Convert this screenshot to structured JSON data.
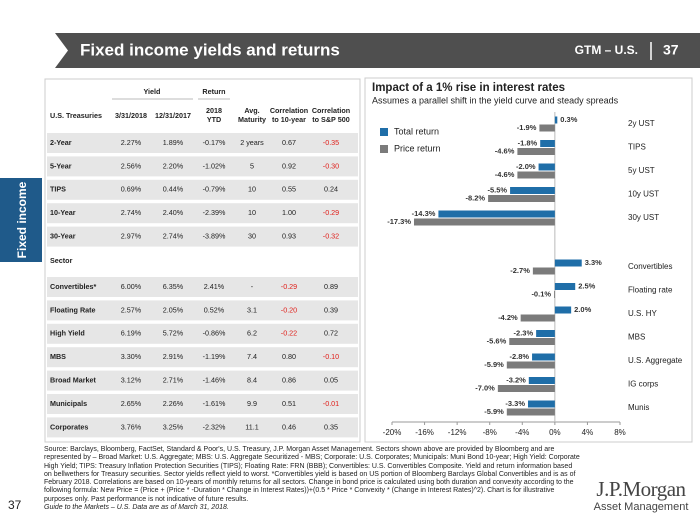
{
  "header": {
    "title": "Fixed income yields and returns",
    "series_label": "GTM – U.S.",
    "page": "37"
  },
  "side_label": "Fixed income",
  "table": {
    "group_headers": [
      "Yield",
      "Return"
    ],
    "columns": [
      [
        "U.S. Treasuries"
      ],
      [
        "3/31/2018"
      ],
      [
        "12/31/2017"
      ],
      [
        "2018",
        "YTD"
      ],
      [
        "Avg.",
        "Maturity"
      ],
      [
        "Correlation",
        "to 10-year"
      ],
      [
        "Correlation",
        "to S&P 500"
      ]
    ],
    "treasury_rows": [
      [
        "2-Year",
        "2.27%",
        "1.89%",
        "-0.17%",
        "2 years",
        "0.67",
        "-0.35"
      ],
      [
        "5-Year",
        "2.56%",
        "2.20%",
        "-1.02%",
        "5",
        "0.92",
        "-0.30"
      ],
      [
        "TIPS",
        "0.69%",
        "0.44%",
        "-0.79%",
        "10",
        "0.55",
        "0.24"
      ],
      [
        "10-Year",
        "2.74%",
        "2.40%",
        "-2.39%",
        "10",
        "1.00",
        "-0.29"
      ],
      [
        "30-Year",
        "2.97%",
        "2.74%",
        "-3.89%",
        "30",
        "0.93",
        "-0.32"
      ]
    ],
    "sector_label": "Sector",
    "sector_rows": [
      [
        "Convertibles*",
        "6.00%",
        "6.35%",
        "2.41%",
        "-",
        "-0.29",
        "0.89"
      ],
      [
        "Floating Rate",
        "2.57%",
        "2.05%",
        "0.52%",
        "3.1",
        "-0.20",
        "0.39"
      ],
      [
        "High Yield",
        "6.19%",
        "5.72%",
        "-0.86%",
        "6.2",
        "-0.22",
        "0.72"
      ],
      [
        "MBS",
        "3.30%",
        "2.91%",
        "-1.19%",
        "7.4",
        "0.80",
        "-0.10"
      ],
      [
        "Broad Market",
        "3.12%",
        "2.71%",
        "-1.46%",
        "8.4",
        "0.86",
        "0.05"
      ],
      [
        "Municipals",
        "2.65%",
        "2.26%",
        "-1.61%",
        "9.9",
        "0.51",
        "-0.01"
      ],
      [
        "Corporates",
        "3.76%",
        "3.25%",
        "-2.32%",
        "11.1",
        "0.46",
        "0.35"
      ]
    ]
  },
  "chart_data": {
    "type": "bar",
    "orientation": "horizontal",
    "title": "Impact of a 1% rise in interest rates",
    "subtitle": "Assumes a parallel shift in the yield curve and steady spreads",
    "categories": [
      "2y UST",
      "TIPS",
      "5y UST",
      "10y UST",
      "30y UST",
      "Convertibles",
      "Floating rate",
      "U.S. HY",
      "MBS",
      "U.S. Aggregate",
      "IG corps",
      "Munis"
    ],
    "series": [
      {
        "name": "Total return",
        "color": "#1f6ea8",
        "values": [
          0.3,
          -1.8,
          -2.0,
          -5.5,
          -14.3,
          3.3,
          2.5,
          2.0,
          -2.3,
          -2.8,
          -3.2,
          -3.3
        ],
        "value_labels": [
          "0.3%",
          "-1.8%",
          "-2.0%",
          "-5.5%",
          "-14.3%",
          "3.3%",
          "2.5%",
          "2.0%",
          "-2.3%",
          "-2.8%",
          "-3.2%",
          "-3.3%"
        ]
      },
      {
        "name": "Price return",
        "color": "#7b7b7b",
        "values": [
          -1.9,
          -4.6,
          -4.6,
          -8.2,
          -17.3,
          -2.7,
          -0.1,
          -4.2,
          -5.6,
          -5.9,
          -7.0,
          -5.9
        ],
        "value_labels": [
          "-1.9%",
          "-4.6%",
          "-4.6%",
          "-8.2%",
          "-17.3%",
          "-2.7%",
          "-0.1%",
          "-4.2%",
          "-5.6%",
          "-5.9%",
          "-7.0%",
          "-5.9%"
        ]
      }
    ],
    "xlim": [
      -20,
      8
    ],
    "xticks": [
      {
        "value": -20,
        "label": "-20%"
      },
      {
        "value": -16,
        "label": "-16%"
      },
      {
        "value": -12,
        "label": "-12%"
      },
      {
        "value": -8,
        "label": "-8%"
      },
      {
        "value": -4,
        "label": "-4%"
      },
      {
        "value": 0,
        "label": "0%"
      },
      {
        "value": 4,
        "label": "4%"
      },
      {
        "value": 8,
        "label": "8%"
      }
    ],
    "legend": "upper left"
  },
  "footnote": {
    "source": "Source: Barclays, Bloomberg, FactSet, Standard & Poor's, U.S. Treasury, J.P. Morgan Asset Management. Sectors shown above are provided by Bloomberg and are represented by – Broad Market: U.S. Aggregate; MBS: U.S. Aggregate Securitized - MBS; Corporate: U.S. Corporates; Municipals: Muni Bond 10-year; High Yield: Corporate High Yield; TIPS: Treasury Inflation Protection Securities (TIPS); Floating Rate: FRN (BBB); Convertibles: U.S. Convertibles Composite. Yield and return information based on bellwethers for Treasury securities. Sector yields reflect yield to worst. *Convertibles yield is based on US portion of Bloomberg Barclays Global Convertibles and is as of February 2018. Correlations are based on 10-years of monthly returns for all sectors. Change in bond price is calculated using both duration and convexity according to the following formula: New Price = (Price + (Price * -Duration * Change in Interest Rates))+(0.5 * Price * Convexity * (Change in Interest Rates)^2). Chart is for illustrative purposes only. Past performance is not indicative of future results.",
    "guide": "Guide to the Markets – U.S. Data are as of March 31, 2018."
  },
  "page_number": "37",
  "logo": {
    "name": "J.P.Morgan",
    "unit": "Asset Management"
  }
}
